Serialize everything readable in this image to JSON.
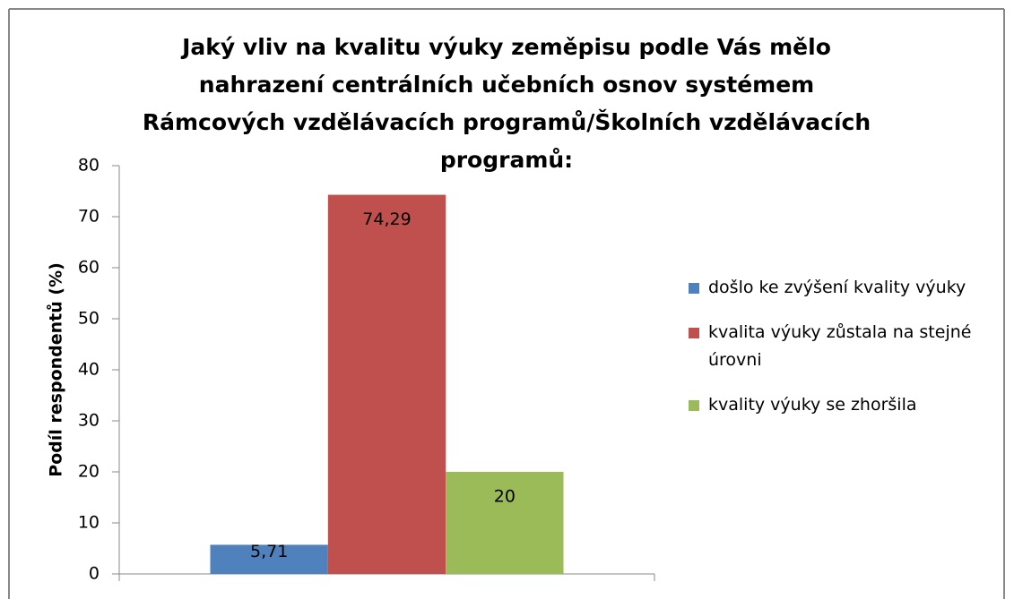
{
  "chart_data": {
    "type": "bar",
    "title": "Jaký vliv na kvalitu výuky zeměpisu podle Vás mělo nahrazení centrálních učebních osnov systémem Rámcových vzdělávacích programů/Školních vzdělávacích programů:",
    "ylabel": "Podíl respondentů (%)",
    "categories": [
      null
    ],
    "series": [
      {
        "name": "došlo ke zvýšení kvality výuky",
        "color": "#4f81bd",
        "values": [
          5.71
        ],
        "value_labels": [
          "5,71"
        ]
      },
      {
        "name": "kvalita výuky zůstala na stejné úrovni",
        "color": "#c0504d",
        "values": [
          74.29
        ],
        "value_labels": [
          "74,29"
        ]
      },
      {
        "name": "kvality výuky se zhoršila",
        "color": "#9bbb59",
        "values": [
          20
        ]
      }
    ],
    "ylim": [
      0,
      80
    ],
    "yticks": [
      0,
      10,
      20,
      30,
      40,
      50,
      60,
      70,
      80
    ],
    "legend": "right"
  }
}
